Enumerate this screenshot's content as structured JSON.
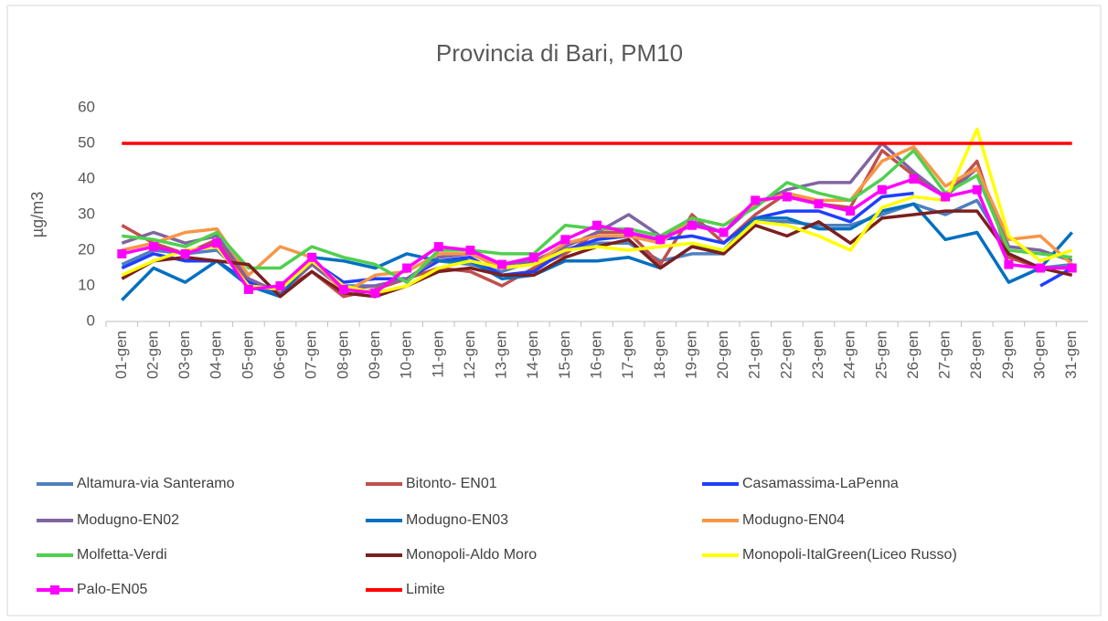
{
  "chart_data": {
    "type": "line",
    "title": "Provincia di Bari, PM10",
    "y_label": "µg/m3",
    "categories": [
      "01-gen",
      "02-gen",
      "03-gen",
      "04-gen",
      "05-gen",
      "06-gen",
      "07-gen",
      "08-gen",
      "09-gen",
      "10-gen",
      "11-gen",
      "12-gen",
      "13-gen",
      "14-gen",
      "15-gen",
      "16-gen",
      "17-gen",
      "18-gen",
      "19-gen",
      "20-gen",
      "21-gen",
      "22-gen",
      "23-gen",
      "24-gen",
      "25-gen",
      "26-gen",
      "27-gen",
      "28-gen",
      "29-gen",
      "30-gen",
      "31-gen"
    ],
    "ylim": [
      0,
      60
    ],
    "yticks": [
      0,
      10,
      20,
      30,
      40,
      50,
      60
    ],
    "grid": false,
    "legend": "bottom",
    "series": [
      {
        "name": "Altamura-via Santeramo",
        "color": "#4f81bd",
        "values": [
          16,
          20,
          19,
          20,
          12,
          8,
          16,
          10,
          10,
          12,
          17,
          16,
          14,
          17,
          20,
          22,
          22,
          17,
          19,
          19,
          28,
          28,
          27,
          27,
          30,
          33,
          30,
          34,
          19,
          15,
          16
        ]
      },
      {
        "name": "Bitonto- EN01",
        "color": "#c0504d",
        "values": [
          27,
          22,
          19,
          23,
          11,
          8,
          14,
          7,
          9,
          12,
          15,
          14,
          10,
          15,
          19,
          25,
          25,
          16,
          30,
          22,
          30,
          36,
          33,
          32,
          48,
          41,
          35,
          45,
          18,
          15,
          15
        ]
      },
      {
        "name": "Casamassima-LaPenna",
        "color": "#1f3fff",
        "values": [
          15,
          19,
          17,
          17,
          11,
          8,
          17,
          11,
          12,
          12,
          17,
          18,
          13,
          14,
          20,
          23,
          24,
          23,
          24,
          22,
          29,
          31,
          31,
          28,
          35,
          36,
          null,
          null,
          null,
          10,
          15
        ]
      },
      {
        "name": "Modugno-EN02",
        "color": "#8064a2",
        "values": [
          22,
          25,
          22,
          24,
          12,
          8,
          16,
          9,
          10,
          12,
          18,
          19,
          16,
          17,
          21,
          25,
          30,
          24,
          28,
          25,
          33,
          37,
          39,
          39,
          50,
          42,
          35,
          43,
          21,
          20,
          17
        ]
      },
      {
        "name": "Modugno-EN03",
        "color": "#0070c0",
        "values": [
          6,
          15,
          11,
          17,
          10,
          7,
          18,
          17,
          15,
          19,
          17,
          17,
          12,
          13,
          17,
          17,
          18,
          15,
          21,
          20,
          29,
          29,
          26,
          26,
          31,
          33,
          23,
          25,
          11,
          15,
          25
        ]
      },
      {
        "name": "Modugno-EN04",
        "color": "#f79646",
        "values": [
          20,
          22,
          25,
          26,
          13,
          21,
          18,
          8,
          13,
          14,
          19,
          19,
          15,
          16,
          22,
          24,
          24,
          22,
          29,
          27,
          33,
          36,
          34,
          34,
          45,
          49,
          38,
          43,
          23,
          24,
          16
        ]
      },
      {
        "name": "Molfetta-Verdi",
        "color": "#4fd04f",
        "values": [
          24,
          23,
          21,
          25,
          15,
          15,
          21,
          18,
          16,
          11,
          20,
          20,
          19,
          19,
          27,
          26,
          26,
          24,
          29,
          27,
          32,
          39,
          36,
          34,
          40,
          48,
          36,
          41,
          20,
          19,
          18
        ]
      },
      {
        "name": "Monopoli-Aldo Moro",
        "color": "#7b1f1f",
        "values": [
          12,
          17,
          18,
          17,
          16,
          7,
          14,
          8,
          7,
          10,
          14,
          15,
          13,
          13,
          18,
          21,
          23,
          15,
          21,
          19,
          27,
          24,
          28,
          22,
          29,
          30,
          31,
          31,
          19,
          15,
          13
        ]
      },
      {
        "name": "Monopoli-ItalGreen(Liceo Russo)",
        "color": "#ffff00",
        "values": [
          13,
          17,
          20,
          21,
          10,
          9,
          17,
          10,
          8,
          10,
          15,
          17,
          15,
          16,
          20,
          21,
          20,
          21,
          22,
          20,
          28,
          27,
          24,
          20,
          32,
          35,
          34,
          54,
          24,
          17,
          20
        ]
      },
      {
        "name": "Palo-EN05",
        "color": "#ff00ff",
        "marker": "square",
        "values": [
          19,
          21,
          19,
          22,
          9,
          10,
          18,
          9,
          8,
          15,
          21,
          20,
          16,
          18,
          23,
          27,
          25,
          23,
          27,
          25,
          34,
          35,
          33,
          31,
          37,
          40,
          35,
          37,
          16,
          15,
          15
        ]
      },
      {
        "name": "Limite",
        "color": "#ff0000",
        "values": [
          50,
          50,
          50,
          50,
          50,
          50,
          50,
          50,
          50,
          50,
          50,
          50,
          50,
          50,
          50,
          50,
          50,
          50,
          50,
          50,
          50,
          50,
          50,
          50,
          50,
          50,
          50,
          50,
          50,
          50,
          50
        ]
      }
    ]
  }
}
